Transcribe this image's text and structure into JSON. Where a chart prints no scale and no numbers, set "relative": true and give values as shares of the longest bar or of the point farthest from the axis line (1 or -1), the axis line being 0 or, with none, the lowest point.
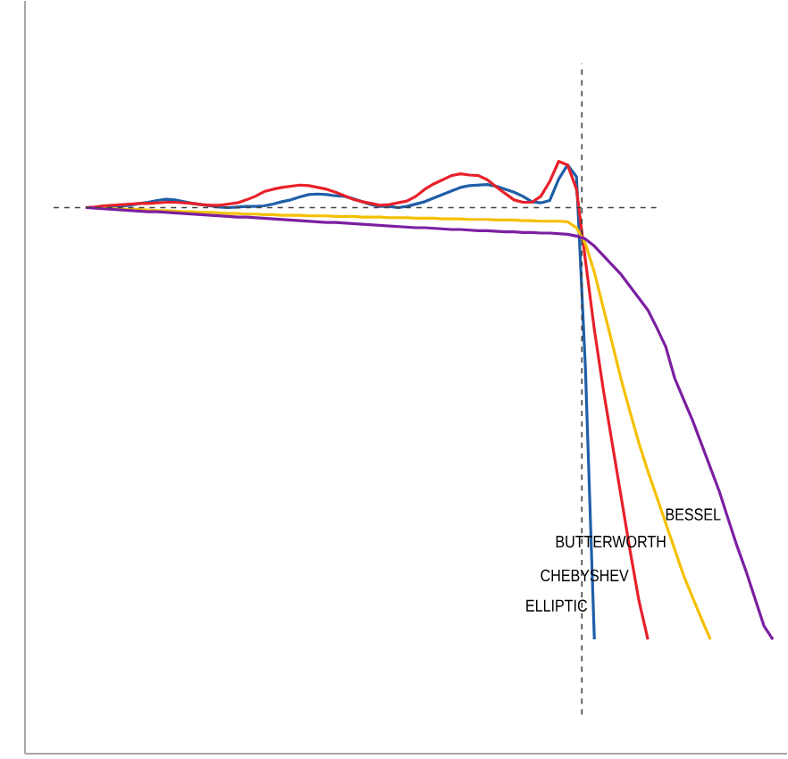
{
  "chart_data": {
    "type": "line",
    "relative": true,
    "marker": "none",
    "line_style": "solid",
    "categories": [
      null,
      null,
      null,
      null,
      null,
      null,
      null,
      null,
      null,
      null,
      null,
      null,
      null,
      null,
      null,
      null,
      null,
      null,
      null,
      null,
      null,
      null,
      null,
      null,
      null,
      null,
      null,
      null,
      null,
      null,
      null,
      null,
      null,
      null,
      null,
      null,
      null,
      null,
      null,
      null,
      null,
      null,
      null,
      null,
      null,
      null,
      null,
      null,
      null,
      null,
      null,
      null,
      null,
      null,
      null,
      null,
      null,
      null,
      null,
      null,
      null,
      null,
      null,
      null,
      null,
      null,
      null,
      null,
      null,
      null,
      null,
      null,
      null,
      null,
      null,
      null,
      null,
      null
    ],
    "series": [
      {
        "name": "ELLIPTIC",
        "color": "#1f5fa8",
        "values": [
          null,
          null,
          0.924,
          0.924,
          0.925,
          0.926,
          0.929,
          0.931,
          0.934,
          0.936,
          0.935,
          0.932,
          0.929,
          0.927,
          0.925,
          0.923,
          0.922,
          0.923,
          0.924,
          0.924,
          0.925,
          0.928,
          0.932,
          0.935,
          0.94,
          0.944,
          0.945,
          0.944,
          0.942,
          0.941,
          0.937,
          0.932,
          0.927,
          0.924,
          0.924,
          0.922,
          0.924,
          0.928,
          0.932,
          0.938,
          0.944,
          0.95,
          0.956,
          0.959,
          0.96,
          0.961,
          0.958,
          0.953,
          0.948,
          0.941,
          0.932,
          0.93,
          0.934,
          0.97,
          0.994,
          0.974,
          0.65,
          0.193,
          null,
          null,
          null,
          null,
          null,
          null,
          null,
          null,
          null,
          null,
          null,
          null,
          null,
          null,
          null,
          null,
          null,
          null,
          null,
          null
        ]
      },
      {
        "name": "CHEBYSHEV",
        "color": "#e8202a",
        "values": [
          0.922,
          0.923,
          0.925,
          0.926,
          0.927,
          0.928,
          0.929,
          0.929,
          0.93,
          0.931,
          0.931,
          0.93,
          0.929,
          0.927,
          0.926,
          0.926,
          0.928,
          0.93,
          0.935,
          0.941,
          0.949,
          0.953,
          0.956,
          0.958,
          0.96,
          0.959,
          0.956,
          0.953,
          0.948,
          0.942,
          0.936,
          0.932,
          0.929,
          0.926,
          0.927,
          0.93,
          0.933,
          0.941,
          0.953,
          0.962,
          0.969,
          0.976,
          0.979,
          0.977,
          0.976,
          0.969,
          0.957,
          0.946,
          0.935,
          0.931,
          0.931,
          0.941,
          0.966,
          1,
          0.994,
          0.953,
          0.833,
          0.716,
          0.615,
          0.524,
          0.434,
          0.343,
          0.258,
          0.193,
          null,
          null,
          null,
          null,
          null,
          null,
          null,
          null,
          null,
          null,
          null,
          null,
          null,
          null
        ]
      },
      {
        "name": "BUTTERWORTH",
        "color": "#f5c000",
        "values": [
          null,
          null,
          0.921,
          0.92,
          0.92,
          0.919,
          0.919,
          0.918,
          0.917,
          0.917,
          0.916,
          0.915,
          0.915,
          0.914,
          0.914,
          0.913,
          0.912,
          0.912,
          0.911,
          0.911,
          0.91,
          0.91,
          0.909,
          0.909,
          0.909,
          0.908,
          0.908,
          0.908,
          0.907,
          0.907,
          0.907,
          0.906,
          0.906,
          0.906,
          0.905,
          0.905,
          0.905,
          0.904,
          0.904,
          0.904,
          0.903,
          0.903,
          0.903,
          0.902,
          0.902,
          0.902,
          0.901,
          0.901,
          0.901,
          0.9,
          0.9,
          0.899,
          0.899,
          0.899,
          0.898,
          0.888,
          0.861,
          0.813,
          0.753,
          0.693,
          0.632,
          0.577,
          0.524,
          0.477,
          0.433,
          0.389,
          0.345,
          0.301,
          0.264,
          0.228,
          0.193,
          null,
          null,
          null,
          null,
          null,
          null,
          null
        ]
      },
      {
        "name": "BESSEL",
        "color": "#7b1fa2",
        "values": [
          0.922,
          0.921,
          0.92,
          0.919,
          0.918,
          0.917,
          0.916,
          0.915,
          0.915,
          0.914,
          0.913,
          0.912,
          0.911,
          0.91,
          0.909,
          0.908,
          0.907,
          0.906,
          0.906,
          0.905,
          0.904,
          0.903,
          0.902,
          0.901,
          0.9,
          0.899,
          0.898,
          0.897,
          0.897,
          0.896,
          0.895,
          0.894,
          0.893,
          0.892,
          0.891,
          0.89,
          0.889,
          0.888,
          0.888,
          0.887,
          0.886,
          0.885,
          0.885,
          0.884,
          0.883,
          0.883,
          0.882,
          0.881,
          0.881,
          0.88,
          0.88,
          0.879,
          0.879,
          0.878,
          0.877,
          0.874,
          0.869,
          0.857,
          0.841,
          0.825,
          0.809,
          0.789,
          0.769,
          0.749,
          0.719,
          0.687,
          0.634,
          0.598,
          0.563,
          0.523,
          0.483,
          0.443,
          0.396,
          0.35,
          0.308,
          0.262,
          0.216,
          0.193
        ]
      }
    ],
    "ref_lines": [
      {
        "axis": "y",
        "value": 0.922,
        "color": "#444444",
        "line_style": "dashed"
      }
    ]
  }
}
